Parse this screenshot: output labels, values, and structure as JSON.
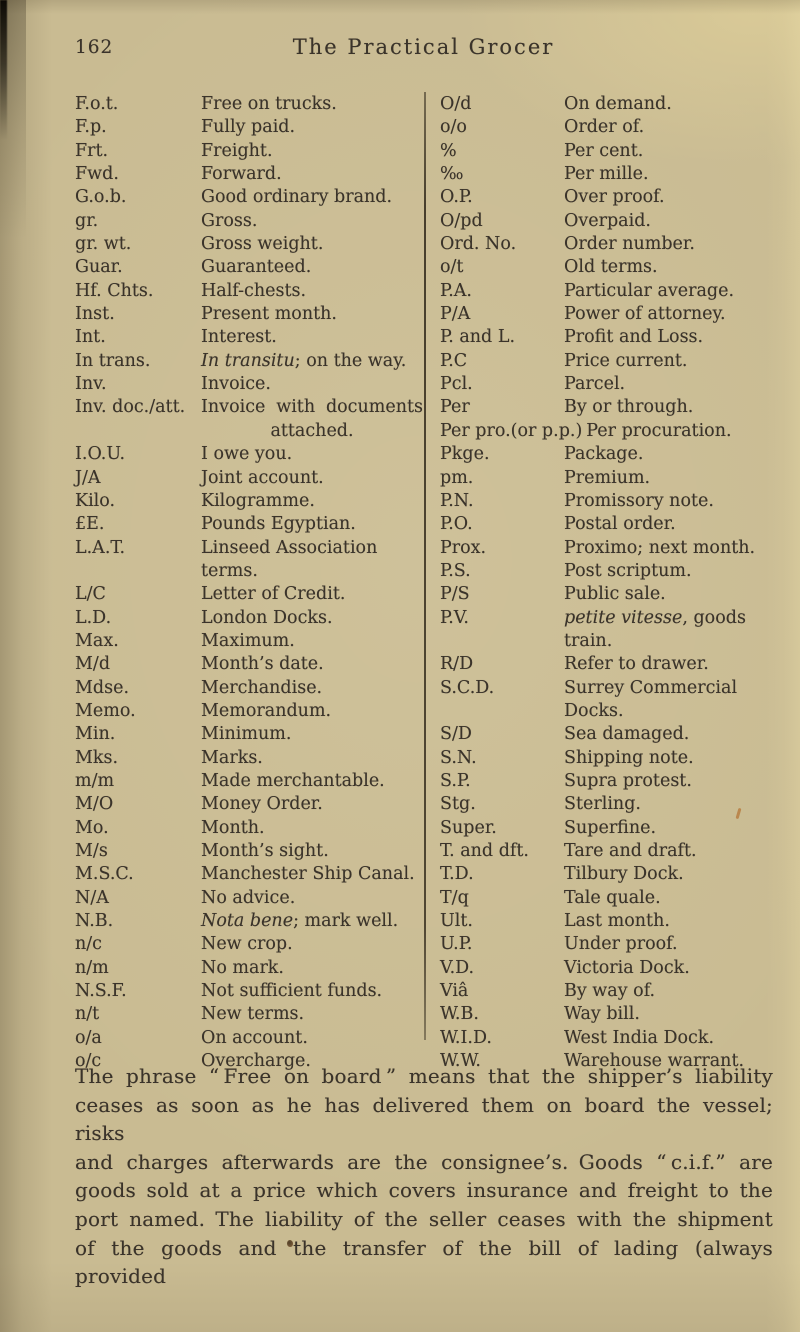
{
  "page": {
    "number": "162",
    "title": "The Practical Grocer"
  },
  "abbreviations": {
    "left": [
      [
        "F.o.t.",
        "Free on trucks."
      ],
      [
        "F.p.",
        "Fully paid."
      ],
      [
        "Frt.",
        "Freight."
      ],
      [
        "Fwd.",
        "Forward."
      ],
      [
        "G.o.b.",
        "Good ordinary brand."
      ],
      [
        "gr.",
        "Gross."
      ],
      [
        "gr. wt.",
        "Gross weight."
      ],
      [
        "Guar.",
        "Guaranteed."
      ],
      [
        "Hf. Chts.",
        "Half-chests."
      ],
      [
        "Inst.",
        "Present month."
      ],
      [
        "Int.",
        "Interest."
      ],
      [
        "In trans.",
        "*In transitu*; on the way."
      ],
      [
        "Inv.",
        "Invoice."
      ],
      [
        "Inv. doc./att.",
        "Invoice with documents attached."
      ],
      [
        "I.O.U.",
        "I owe you."
      ],
      [
        "J/A",
        "Joint account."
      ],
      [
        "Kilo.",
        "Kilogramme."
      ],
      [
        "£E.",
        "Pounds Egyptian."
      ],
      [
        "L.A.T.",
        "Linseed Association terms."
      ],
      [
        "L/C",
        "Letter of Credit."
      ],
      [
        "L.D.",
        "London Docks."
      ],
      [
        "Max.",
        "Maximum."
      ],
      [
        "M/d",
        "Month’s date."
      ],
      [
        "Mdse.",
        "Merchandise."
      ],
      [
        "Memo.",
        "Memorandum."
      ],
      [
        "Min.",
        "Minimum."
      ],
      [
        "Mks.",
        "Marks."
      ],
      [
        "m/m",
        "Made merchantable."
      ],
      [
        "M/O",
        "Money Order."
      ],
      [
        "Mo.",
        "Month."
      ],
      [
        "M/s",
        "Month’s sight."
      ],
      [
        "M.S.C.",
        "Manchester Ship Canal."
      ],
      [
        "N/A",
        "No advice."
      ],
      [
        "N.B.",
        "*Nota bene*; mark well."
      ],
      [
        "n/c",
        "New crop."
      ],
      [
        "n/m",
        "No mark."
      ],
      [
        "N.S.F.",
        "Not sufficient funds."
      ],
      [
        "n/t",
        "New terms."
      ],
      [
        "o/a",
        "On account."
      ],
      [
        "o/c",
        "Overcharge."
      ]
    ],
    "right": [
      [
        "O/d",
        "On demand."
      ],
      [
        "o/o",
        "Order of."
      ],
      [
        "%",
        "Per cent."
      ],
      [
        "‰",
        "Per mille."
      ],
      [
        "O.P.",
        "Over proof."
      ],
      [
        "O/pd",
        "Overpaid."
      ],
      [
        "Ord. No.",
        "Order number."
      ],
      [
        "o/t",
        "Old terms."
      ],
      [
        "P.A.",
        "Particular average."
      ],
      [
        "P/A",
        "Power of attorney."
      ],
      [
        "P. and L.",
        "Profit and Loss."
      ],
      [
        "P.C",
        "Price current."
      ],
      [
        "Pcl.",
        "Parcel."
      ],
      [
        "Per",
        "By or through."
      ],
      [
        "Per pro.(or p.p.)",
        "Per procuration."
      ],
      [
        "Pkge.",
        "Package."
      ],
      [
        "pm.",
        "Premium."
      ],
      [
        "P.N.",
        "Promissory note."
      ],
      [
        "P.O.",
        "Postal order."
      ],
      [
        "Prox.",
        "Proximo; next month."
      ],
      [
        "P.S.",
        "Post scriptum."
      ],
      [
        "P/S",
        "Public sale."
      ],
      [
        "P.V.",
        "*petite vitesse*, goods train."
      ],
      [
        "R/D",
        "Refer to drawer."
      ],
      [
        "S.C.D.",
        "Surrey Commercial Docks."
      ],
      [
        "S/D",
        "Sea damaged."
      ],
      [
        "S.N.",
        "Shipping note."
      ],
      [
        "S.P.",
        "Supra protest."
      ],
      [
        "Stg.",
        "Sterling."
      ],
      [
        "Super.",
        "Superfine."
      ],
      [
        "T. and dft.",
        "Tare and draft."
      ],
      [
        "T.D.",
        "Tilbury Dock."
      ],
      [
        "T/q",
        "Tale quale."
      ],
      [
        "Ult.",
        "Last month."
      ],
      [
        "U.P.",
        "Under proof."
      ],
      [
        "V.D.",
        "Victoria Dock."
      ],
      [
        "Viâ",
        "By way of."
      ],
      [
        "W.B.",
        "Way bill."
      ],
      [
        "W.I.D.",
        "West India Dock."
      ],
      [
        "W.W.",
        "Warehouse warrant."
      ]
    ]
  },
  "paragraph": {
    "text": "The phrase “ Free on board ” means that the shipper’s liability\nceases as soon as he has delivered them on board the vessel; risks\nand charges afterwards are the consignee’s. Goods “ c.i.f.” are\ngoods sold at a price which covers insurance and freight to the\nport named. The liability of the seller ceases with the shipment\nof the goods and the transfer of the bill of lading (always provided"
  }
}
